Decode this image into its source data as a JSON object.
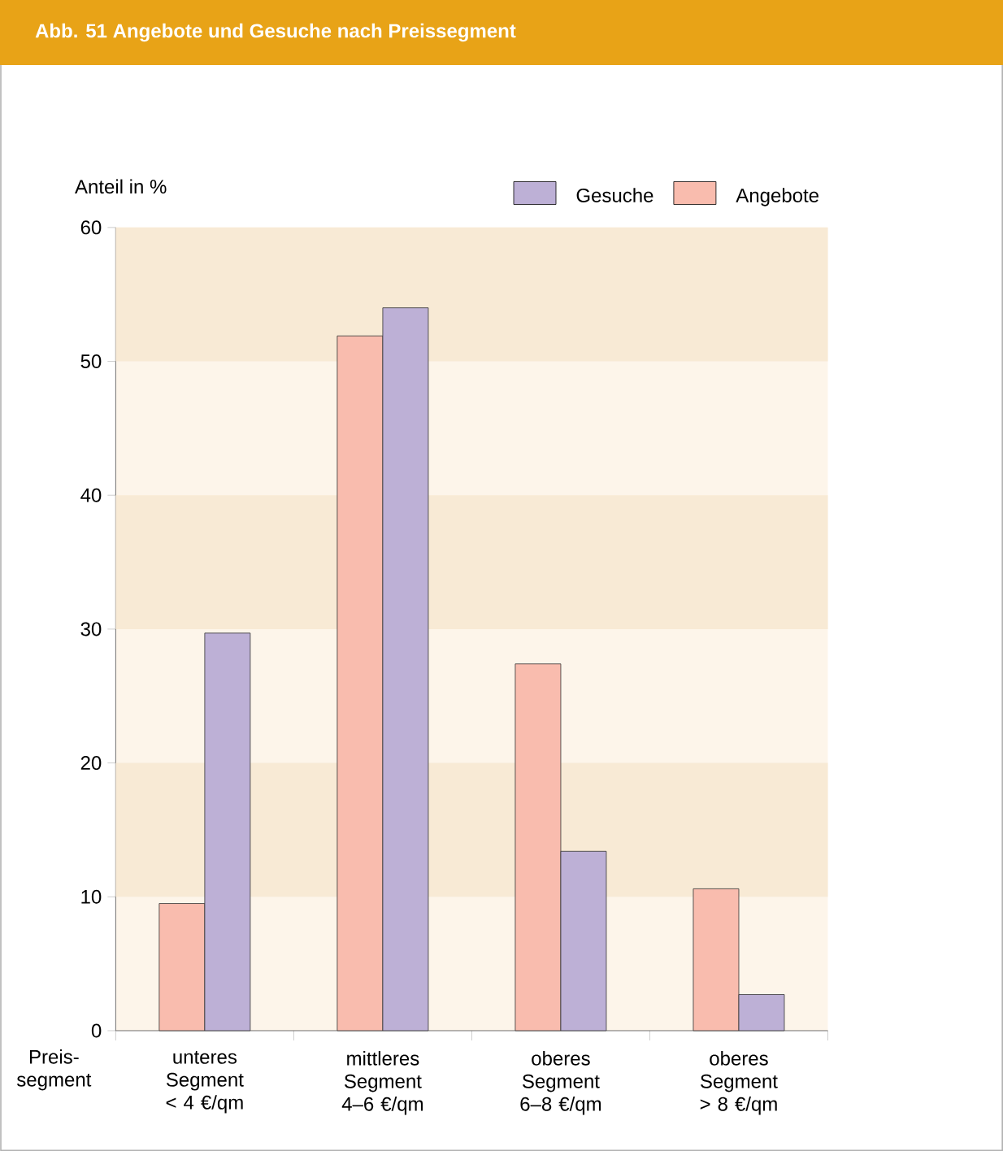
{
  "chart_data": {
    "type": "bar",
    "title": "Abb. 51 Angebote und Gesuche nach Preissegment",
    "xlabel": "Preis-segment",
    "ylabel": "Anteil in %",
    "categories": [
      "unteres Segment < 4 €/qm",
      "mittleres Segment 4–6 €/qm",
      "oberes Segment 6–8 €/qm",
      "oberes Segment > 8 €/qm"
    ],
    "series": [
      {
        "name": "Angebote",
        "color": "#f9bcae",
        "values": [
          9.5,
          51.9,
          27.4,
          10.6
        ]
      },
      {
        "name": "Gesuche",
        "color": "#bdb0d6",
        "values": [
          29.7,
          54.0,
          13.4,
          2.7
        ]
      }
    ],
    "ylim": [
      0,
      60
    ],
    "yticks": [
      0,
      10,
      20,
      30,
      40,
      50,
      60
    ],
    "bands": [
      {
        "axis": "y",
        "from": 10,
        "to": 20,
        "color": "#f8ead5"
      },
      {
        "axis": "y",
        "from": 30,
        "to": 40,
        "color": "#f8ead5"
      },
      {
        "axis": "y",
        "from": 50,
        "to": 60,
        "color": "#f8ead5"
      }
    ],
    "grid": false,
    "legend": "top right"
  }
}
